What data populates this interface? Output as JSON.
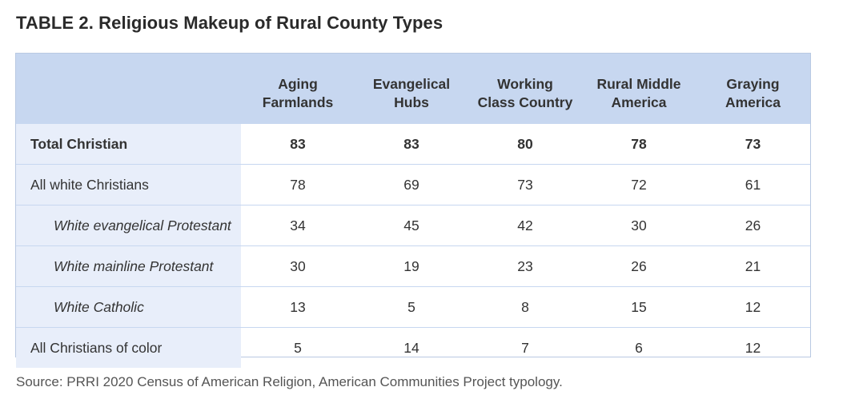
{
  "title": "TABLE 2. Religious Makeup of Rural County Types",
  "source": "Source: PRRI 2020 Census of American Religion, American Communities Project typology.",
  "chart_data": {
    "type": "table",
    "title": "TABLE 2. Religious Makeup of Rural County Types",
    "columns": [
      [
        "Aging",
        "Farmlands"
      ],
      [
        "Evangelical",
        "Hubs"
      ],
      [
        "Working",
        "Class Country"
      ],
      [
        "Rural Middle",
        "America"
      ],
      [
        "Graying",
        "America"
      ]
    ],
    "rows": [
      {
        "label": "Total Christian",
        "style": "bold",
        "values": [
          "83",
          "83",
          "80",
          "78",
          "73"
        ]
      },
      {
        "label": "All white Christians",
        "style": "normal",
        "values": [
          "78",
          "69",
          "73",
          "72",
          "61"
        ]
      },
      {
        "label": "White evangelical Protestant",
        "style": "italic-indent",
        "values": [
          "34",
          "45",
          "42",
          "30",
          "26"
        ]
      },
      {
        "label": "White mainline Protestant",
        "style": "italic-indent",
        "values": [
          "30",
          "19",
          "23",
          "26",
          "21"
        ]
      },
      {
        "label": "White Catholic",
        "style": "italic-indent",
        "values": [
          "13",
          "5",
          "8",
          "15",
          "12"
        ]
      },
      {
        "label": "All Christians of color",
        "style": "normal",
        "values": [
          "5",
          "14",
          "7",
          "6",
          "12"
        ]
      }
    ],
    "colors": {
      "header": "#c7d7f0",
      "label_column": "#e8eefa",
      "border": "#b9c9e2"
    }
  }
}
